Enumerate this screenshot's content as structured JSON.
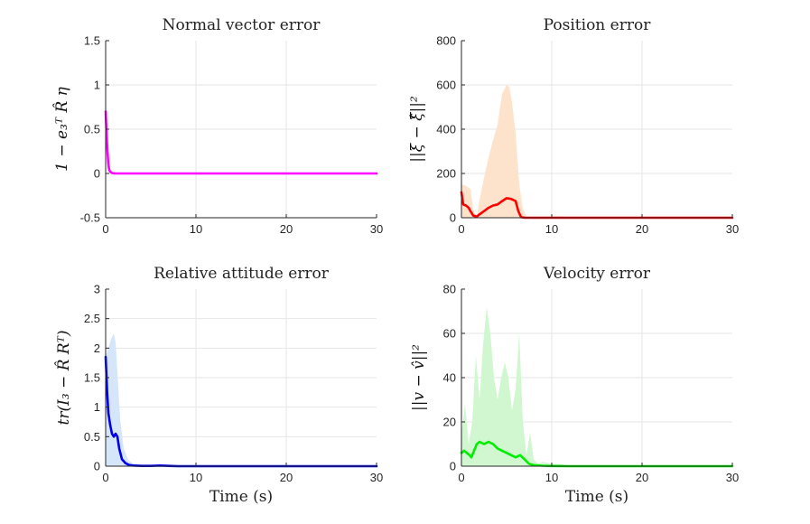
{
  "chart_data": [
    {
      "type": "line",
      "title": "Normal vector error",
      "ylabel": "1 − e₃ᵀ R̂ η",
      "xlabel": "",
      "xlim": [
        0,
        30
      ],
      "ylim": [
        -0.5,
        1.5
      ],
      "xticks": [
        "0",
        "10",
        "20",
        "30"
      ],
      "yticks": [
        "-0.5",
        "0",
        "0.5",
        "1",
        "1.5"
      ],
      "ytick_values": [
        -0.5,
        0,
        0.5,
        1,
        1.5
      ],
      "grid": true,
      "series": [
        {
          "name": "mean",
          "color": "#ff00ff",
          "x": [
            0,
            0.1,
            0.2,
            0.3,
            0.4,
            0.5,
            0.7,
            1.0,
            2,
            5,
            10,
            15,
            20,
            25,
            30
          ],
          "y": [
            0.7,
            0.45,
            0.25,
            0.1,
            0.04,
            0.02,
            0.005,
            0,
            0,
            0,
            0,
            0,
            0,
            0,
            0
          ]
        }
      ],
      "band": null
    },
    {
      "type": "area",
      "title": "Position error",
      "ylabel": "||ξ − ξ̂||²",
      "xlabel": "",
      "xlim": [
        0,
        30
      ],
      "ylim": [
        0,
        800
      ],
      "xticks": [
        "0",
        "10",
        "20",
        "30"
      ],
      "yticks": [
        "0",
        "200",
        "400",
        "600",
        "800"
      ],
      "ytick_values": [
        0,
        200,
        400,
        600,
        800
      ],
      "grid": true,
      "series": [
        {
          "name": "mean",
          "color": "#ff0000",
          "x": [
            0,
            0.2,
            0.5,
            0.8,
            1.0,
            1.3,
            1.7,
            2.0,
            2.5,
            3.0,
            3.5,
            4.0,
            4.5,
            5.0,
            5.5,
            6.0,
            6.3,
            6.6,
            7.0,
            8,
            10,
            15,
            20,
            25,
            30
          ],
          "y": [
            115,
            60,
            55,
            45,
            30,
            10,
            5,
            15,
            30,
            45,
            55,
            60,
            75,
            88,
            85,
            75,
            30,
            3,
            0,
            0,
            0,
            0,
            0,
            0,
            0
          ]
        }
      ],
      "band": {
        "color": "#fde3cc",
        "x": [
          0,
          0.5,
          1.0,
          1.3,
          1.7,
          2.0,
          2.5,
          3.0,
          3.5,
          4.0,
          4.5,
          5.0,
          5.3,
          5.6,
          6.0,
          6.4,
          6.8,
          7.2,
          8,
          10,
          11,
          12,
          15,
          20,
          30
        ],
        "upper": [
          150,
          145,
          130,
          40,
          5,
          80,
          180,
          270,
          350,
          420,
          560,
          600,
          590,
          520,
          380,
          150,
          40,
          5,
          3,
          5,
          6,
          2,
          0,
          0,
          0
        ],
        "lower": [
          0,
          0,
          0,
          0,
          0,
          0,
          0,
          0,
          0,
          0,
          0,
          0,
          0,
          0,
          0,
          0,
          0,
          0,
          0,
          0,
          0,
          0,
          0,
          0,
          0
        ]
      }
    },
    {
      "type": "area",
      "title": "Relative attitude error",
      "ylabel": "tr(I₃ − R̂ Rᵀ)",
      "xlabel": "Time (s)",
      "xlim": [
        0,
        30
      ],
      "ylim": [
        0,
        3
      ],
      "xticks": [
        "0",
        "10",
        "20",
        "30"
      ],
      "yticks": [
        "0",
        "0.5",
        "1",
        "1.5",
        "2",
        "2.5",
        "3"
      ],
      "ytick_values": [
        0,
        0.5,
        1,
        1.5,
        2,
        2.5,
        3
      ],
      "grid": true,
      "series": [
        {
          "name": "mean",
          "color": "#0000ee",
          "x": [
            0,
            0.15,
            0.3,
            0.5,
            0.7,
            0.9,
            1.1,
            1.3,
            1.5,
            1.8,
            2.2,
            2.6,
            3.0,
            4,
            5,
            6,
            7,
            8,
            10,
            15,
            20,
            25,
            30
          ],
          "y": [
            1.85,
            1.3,
            0.9,
            0.7,
            0.55,
            0.5,
            0.55,
            0.5,
            0.3,
            0.12,
            0.05,
            0.02,
            0.01,
            0.005,
            0.005,
            0.01,
            0.005,
            0,
            0,
            0,
            0,
            0,
            0
          ]
        }
      ],
      "band": {
        "color": "#d5e6fa",
        "x": [
          0,
          0.3,
          0.6,
          0.9,
          1.1,
          1.3,
          1.6,
          2.0,
          2.5,
          3.0,
          4,
          6,
          8,
          10,
          30
        ],
        "upper": [
          1.85,
          2.0,
          2.15,
          2.25,
          2.1,
          1.6,
          0.8,
          0.3,
          0.1,
          0.05,
          0.02,
          0.02,
          0.01,
          0,
          0
        ],
        "lower": [
          0,
          0,
          0,
          0,
          0,
          0,
          0,
          0,
          0,
          0,
          0,
          0,
          0,
          0,
          0
        ]
      }
    },
    {
      "type": "area",
      "title": "Velocity error",
      "ylabel": "||v − v̂||²",
      "xlabel": "Time (s)",
      "xlim": [
        0,
        30
      ],
      "ylim": [
        0,
        80
      ],
      "xticks": [
        "0",
        "10",
        "20",
        "30"
      ],
      "yticks": [
        "0",
        "20",
        "40",
        "60",
        "80"
      ],
      "ytick_values": [
        0,
        20,
        40,
        60,
        80
      ],
      "grid": true,
      "series": [
        {
          "name": "mean",
          "color": "#00ee00",
          "x": [
            0,
            0.3,
            0.6,
            0.9,
            1.1,
            1.4,
            1.7,
            2.0,
            2.5,
            3.0,
            3.5,
            4.0,
            4.5,
            5.0,
            5.5,
            6.0,
            6.5,
            7.0,
            7.5,
            8.0,
            9,
            10,
            12,
            15,
            20,
            25,
            30
          ],
          "y": [
            6,
            7,
            6,
            5,
            4,
            7,
            10,
            11,
            10,
            11,
            10,
            8,
            7,
            6,
            5,
            4,
            5,
            3,
            1,
            0.5,
            0.2,
            0.1,
            0,
            0,
            0,
            0,
            0
          ]
        }
      ],
      "band": {
        "color": "#d0f7cf",
        "x": [
          0,
          0.4,
          0.8,
          1.2,
          1.6,
          2.0,
          2.4,
          2.8,
          3.2,
          3.6,
          4.0,
          4.4,
          4.8,
          5.2,
          5.6,
          6.0,
          6.4,
          6.8,
          7.2,
          7.6,
          8.0,
          8.5,
          9,
          10,
          11,
          12,
          30
        ],
        "upper": [
          15,
          28,
          10,
          20,
          50,
          30,
          55,
          72,
          60,
          40,
          30,
          40,
          47,
          40,
          25,
          35,
          60,
          20,
          5,
          15,
          3,
          1,
          2,
          1,
          1,
          0,
          0
        ],
        "lower": [
          0,
          0,
          0,
          0,
          0,
          0,
          0,
          0,
          0,
          0,
          0,
          0,
          0,
          0,
          0,
          0,
          0,
          0,
          0,
          0,
          0,
          0,
          0,
          0,
          0,
          0,
          0
        ]
      }
    }
  ]
}
